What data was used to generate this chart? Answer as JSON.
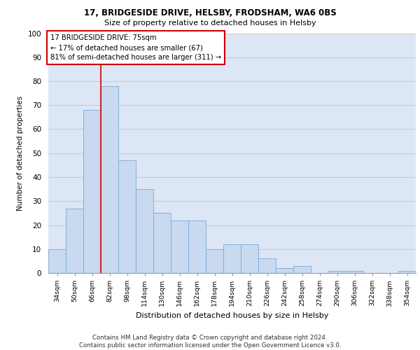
{
  "title1": "17, BRIDGESIDE DRIVE, HELSBY, FRODSHAM, WA6 0BS",
  "title2": "Size of property relative to detached houses in Helsby",
  "xlabel": "Distribution of detached houses by size in Helsby",
  "ylabel": "Number of detached properties",
  "categories": [
    "34sqm",
    "50sqm",
    "66sqm",
    "82sqm",
    "98sqm",
    "114sqm",
    "130sqm",
    "146sqm",
    "162sqm",
    "178sqm",
    "194sqm",
    "210sqm",
    "226sqm",
    "242sqm",
    "258sqm",
    "274sqm",
    "290sqm",
    "306sqm",
    "322sqm",
    "338sqm",
    "354sqm"
  ],
  "values": [
    10,
    27,
    68,
    78,
    47,
    35,
    25,
    22,
    22,
    10,
    12,
    12,
    6,
    2,
    3,
    0,
    1,
    1,
    0,
    0,
    1
  ],
  "bar_color": "#c8d9f0",
  "bar_edge_color": "#7aaad4",
  "annotation_text": "17 BRIDGESIDE DRIVE: 75sqm\n← 17% of detached houses are smaller (67)\n81% of semi-detached houses are larger (311) →",
  "annotation_box_color": "#ffffff",
  "annotation_box_edge": "#cc0000",
  "property_line_color": "#cc0000",
  "ylim": [
    0,
    100
  ],
  "yticks": [
    0,
    10,
    20,
    30,
    40,
    50,
    60,
    70,
    80,
    90,
    100
  ],
  "grid_color": "#c8c8c8",
  "bg_color": "#dce6f5",
  "footer": "Contains HM Land Registry data © Crown copyright and database right 2024.\nContains public sector information licensed under the Open Government Licence v3.0."
}
